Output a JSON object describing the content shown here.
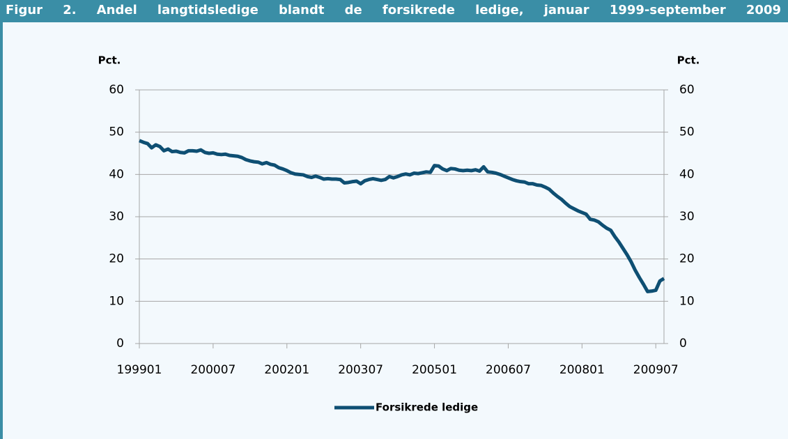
{
  "chart_data": {
    "type": "line",
    "title": "Figur 2. Andel langtidsledige blandt de forsikrede ledige, januar 1999-september 2009",
    "y_label": "Pct.",
    "y2_label": "Pct.",
    "categories": [
      "199901",
      null,
      null,
      null,
      null,
      null,
      null,
      null,
      null,
      null,
      null,
      null,
      null,
      null,
      null,
      null,
      null,
      null,
      "200007",
      null,
      null,
      null,
      null,
      null,
      null,
      null,
      null,
      null,
      null,
      null,
      null,
      null,
      null,
      null,
      null,
      null,
      "200201",
      null,
      null,
      null,
      null,
      null,
      null,
      null,
      null,
      null,
      null,
      null,
      null,
      null,
      null,
      null,
      null,
      null,
      "200307",
      null,
      null,
      null,
      null,
      null,
      null,
      null,
      null,
      null,
      null,
      null,
      null,
      null,
      null,
      null,
      null,
      null,
      "200501",
      null,
      null,
      null,
      null,
      null,
      null,
      null,
      null,
      null,
      null,
      null,
      null,
      null,
      null,
      null,
      null,
      null,
      "200607",
      null,
      null,
      null,
      null,
      null,
      null,
      null,
      null,
      null,
      null,
      null,
      null,
      null,
      null,
      null,
      null,
      null,
      "200801",
      null,
      null,
      null,
      null,
      null,
      null,
      null,
      null,
      null,
      null,
      null,
      null,
      null,
      null,
      null,
      null,
      null,
      "200907",
      null,
      null
    ],
    "series": [
      {
        "name": "Forsikrede ledige",
        "color": "#0e4f73",
        "values": [
          48,
          47.6,
          47.3,
          46.3,
          47,
          46.6,
          45.6,
          46,
          45.4,
          45.5,
          45.2,
          45.1,
          45.6,
          45.6,
          45.5,
          45.8,
          45.2,
          45,
          45.1,
          44.8,
          44.7,
          44.8,
          44.5,
          44.4,
          44.3,
          44,
          43.5,
          43.2,
          43,
          42.9,
          42.5,
          42.8,
          42.4,
          42.2,
          41.6,
          41.3,
          40.9,
          40.4,
          40.1,
          40,
          39.9,
          39.5,
          39.3,
          39.6,
          39.3,
          38.9,
          39,
          38.9,
          38.9,
          38.8,
          38,
          38.1,
          38.3,
          38.4,
          37.8,
          38.5,
          38.8,
          39,
          38.8,
          38.6,
          38.8,
          39.5,
          39.2,
          39.5,
          39.9,
          40.1,
          39.9,
          40.3,
          40.2,
          40.4,
          40.6,
          40.5,
          42.1,
          42,
          41.3,
          40.9,
          41.4,
          41.3,
          41,
          40.9,
          41,
          40.9,
          41.1,
          40.8,
          41.8,
          40.6,
          40.5,
          40.3,
          40,
          39.6,
          39.2,
          38.8,
          38.5,
          38.3,
          38.2,
          37.8,
          37.8,
          37.5,
          37.4,
          37,
          36.5,
          35.6,
          34.8,
          34.1,
          33.2,
          32.4,
          31.9,
          31.4,
          31,
          30.6,
          29.4,
          29.2,
          28.8,
          28,
          27.3,
          26.8,
          25.3,
          24,
          22.5,
          21,
          19.3,
          17.3,
          15.6,
          14,
          12.3,
          12.4,
          12.6,
          14.8,
          15.4
        ]
      }
    ],
    "ylim": [
      0,
      60
    ],
    "yticks": [
      0,
      10,
      20,
      30,
      40,
      50,
      60
    ],
    "y2lim": [
      0,
      60
    ],
    "y2ticks": [
      0,
      10,
      20,
      30,
      40,
      50,
      60
    ],
    "grid": true,
    "legend": "bottom"
  }
}
